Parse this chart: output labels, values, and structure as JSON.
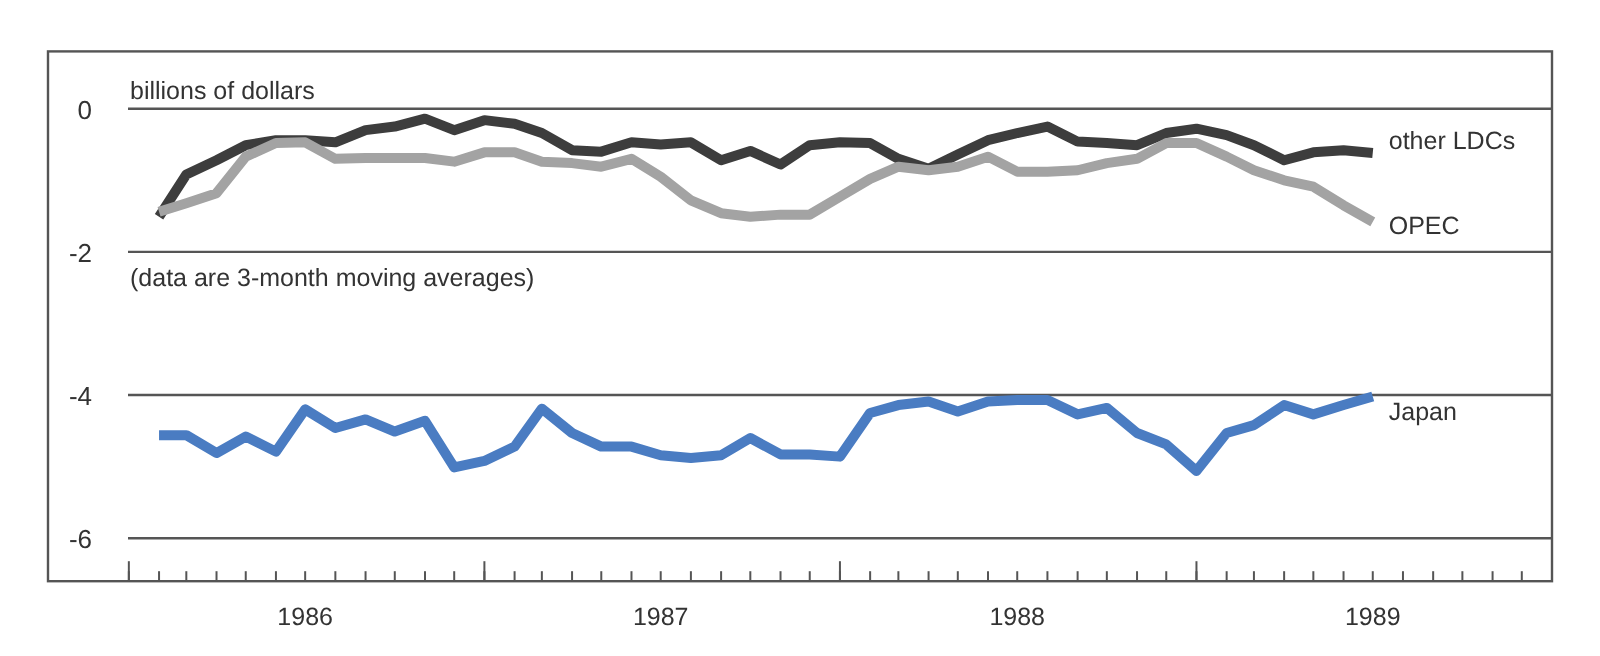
{
  "chart_data": {
    "type": "line",
    "ylabel": "billions of dollars",
    "annotations": [
      "(data are 3-month moving averages)"
    ],
    "x": [
      "1986-02",
      "1986-03",
      "1986-04",
      "1986-05",
      "1986-06",
      "1986-07",
      "1986-08",
      "1986-09",
      "1986-10",
      "1986-11",
      "1986-12",
      "1987-01",
      "1987-02",
      "1987-03",
      "1987-04",
      "1987-05",
      "1987-06",
      "1987-07",
      "1987-08",
      "1987-09",
      "1987-10",
      "1987-11",
      "1987-12",
      "1988-01",
      "1988-02",
      "1988-03",
      "1988-04",
      "1988-05",
      "1988-06",
      "1988-07",
      "1988-08",
      "1988-09",
      "1988-10",
      "1988-11",
      "1988-12",
      "1989-01",
      "1989-02",
      "1989-03",
      "1989-04",
      "1989-05",
      "1989-06",
      "1989-07"
    ],
    "series": [
      {
        "name": "other LDCs",
        "color": "#3d3d3d",
        "values": [
          -1.51,
          -0.92,
          -0.72,
          -0.51,
          -0.44,
          -0.44,
          -0.47,
          -0.3,
          -0.25,
          -0.14,
          -0.3,
          -0.16,
          -0.21,
          -0.34,
          -0.58,
          -0.6,
          -0.47,
          -0.5,
          -0.47,
          -0.72,
          -0.59,
          -0.78,
          -0.51,
          -0.47,
          -0.48,
          -0.7,
          -0.84,
          -0.64,
          -0.44,
          -0.34,
          -0.25,
          -0.46,
          -0.48,
          -0.51,
          -0.34,
          -0.28,
          -0.37,
          -0.51,
          -0.72,
          -0.61,
          -0.58,
          -0.62
        ]
      },
      {
        "name": "OPEC",
        "color": "#a3a3a3",
        "values": [
          -1.44,
          -1.32,
          -1.18,
          -0.67,
          -0.48,
          -0.47,
          -0.7,
          -0.69,
          -0.69,
          -0.69,
          -0.74,
          -0.61,
          -0.61,
          -0.74,
          -0.76,
          -0.81,
          -0.7,
          -0.95,
          -1.28,
          -1.46,
          -1.51,
          -1.48,
          -1.48,
          -1.23,
          -0.98,
          -0.81,
          -0.86,
          -0.81,
          -0.67,
          -0.88,
          -0.88,
          -0.86,
          -0.76,
          -0.7,
          -0.48,
          -0.48,
          -0.67,
          -0.86,
          -1.0,
          -1.09,
          -1.35,
          -1.58
        ]
      },
      {
        "name": "Japan",
        "color": "#4a7cc2",
        "values": [
          -4.56,
          -4.56,
          -4.81,
          -4.58,
          -4.79,
          -4.2,
          -4.46,
          -4.34,
          -4.51,
          -4.36,
          -5.01,
          -4.92,
          -4.72,
          -4.19,
          -4.53,
          -4.72,
          -4.72,
          -4.84,
          -4.88,
          -4.84,
          -4.6,
          -4.83,
          -4.83,
          -4.86,
          -4.25,
          -4.14,
          -4.09,
          -4.23,
          -4.09,
          -4.07,
          -4.07,
          -4.27,
          -4.18,
          -4.53,
          -4.69,
          -5.06,
          -4.53,
          -4.42,
          -4.14,
          -4.27,
          -4.14,
          -4.02
        ]
      }
    ],
    "xlim": [
      "1985-10-10",
      "1990-01"
    ],
    "xticks": [
      {
        "value": "1986-01",
        "label": null
      },
      {
        "value": "1986-07",
        "label": "1986"
      },
      {
        "value": "1987-01",
        "label": null
      },
      {
        "value": "1987-07",
        "label": "1987"
      },
      {
        "value": "1988-01",
        "label": null
      },
      {
        "value": "1988-07",
        "label": "1988"
      },
      {
        "value": "1989-01",
        "label": null
      },
      {
        "value": "1989-07",
        "label": "1989"
      },
      {
        "value": "1990-01",
        "label": null
      }
    ],
    "ylim": [
      -6.6,
      0.8
    ],
    "yticks": [
      0,
      -2,
      -4,
      -6
    ],
    "grid": "y",
    "legend": false,
    "line_style": "solid",
    "marker": "none"
  }
}
